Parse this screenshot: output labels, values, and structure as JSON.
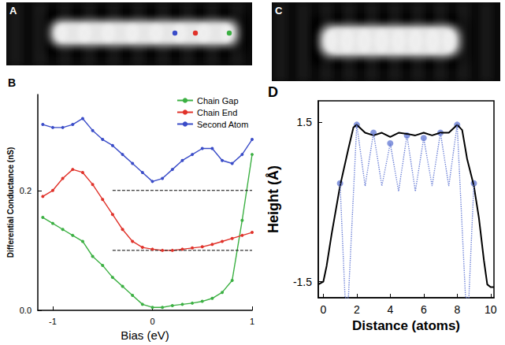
{
  "images": [
    {
      "label": "A",
      "markers": [
        {
          "color": "#3a4cc8"
        },
        {
          "color": "#e0322a"
        },
        {
          "color": "#3cb043"
        }
      ]
    },
    {
      "label": "C"
    }
  ],
  "chart_data": [
    {
      "type": "line",
      "title": "B",
      "x_label": "Bias (eV)",
      "y_label": "Differential Conductance (nS)",
      "x": [
        -1.1,
        -1.0,
        -0.9,
        -0.8,
        -0.7,
        -0.6,
        -0.5,
        -0.4,
        -0.3,
        -0.2,
        -0.1,
        0.0,
        0.1,
        0.2,
        0.3,
        0.4,
        0.5,
        0.6,
        0.7,
        0.8,
        0.9,
        1.0
      ],
      "series": [
        {
          "name": "Chain Gap",
          "color": "#3cb043",
          "marker": "circle",
          "line_style": "solid",
          "values": [
            0.155,
            0.145,
            0.135,
            0.125,
            0.115,
            0.09,
            0.075,
            0.055,
            0.04,
            0.025,
            0.01,
            0.005,
            0.005,
            0.008,
            0.01,
            0.012,
            0.015,
            0.02,
            0.03,
            0.05,
            0.15,
            0.26
          ]
        },
        {
          "name": "Chain End",
          "color": "#e0322a",
          "marker": "circle",
          "line_style": "solid",
          "values": [
            0.19,
            0.2,
            0.22,
            0.235,
            0.23,
            0.21,
            0.185,
            0.16,
            0.135,
            0.115,
            0.105,
            0.102,
            0.1,
            0.1,
            0.102,
            0.104,
            0.106,
            0.11,
            0.115,
            0.12,
            0.125,
            0.13
          ]
        },
        {
          "name": "Second Atom",
          "color": "#3a4cc8",
          "marker": "circle",
          "line_style": "solid",
          "values": [
            0.31,
            0.305,
            0.305,
            0.31,
            0.32,
            0.3,
            0.285,
            0.275,
            0.26,
            0.245,
            0.23,
            0.215,
            0.22,
            0.235,
            0.25,
            0.26,
            0.27,
            0.27,
            0.25,
            0.245,
            0.26,
            0.285
          ]
        }
      ],
      "baselines": [
        {
          "x": [
            -0.4,
            1.0
          ],
          "y": 0.2
        },
        {
          "x": [
            -0.4,
            1.0
          ],
          "y": 0.1
        }
      ],
      "xlim": [
        -1.15,
        1.0
      ],
      "xticks": [
        -1,
        0,
        1
      ],
      "ylim": [
        0,
        0.36
      ],
      "yticks": [
        {
          "value": 0,
          "label": "0.0"
        },
        {
          "value": 0.2,
          "label": "0.2"
        }
      ],
      "grid": false,
      "legend": "upper right"
    },
    {
      "type": "line",
      "title": "D",
      "x_label": "Distance (atoms)",
      "y_label": "Height (Å)",
      "series": [
        {
          "color": "#000000",
          "type": "line",
          "marker": "none",
          "line_style": "solid",
          "x": [
            -0.3,
            0,
            0.2,
            0.5,
            1,
            1.5,
            1.8,
            2,
            2.5,
            3,
            3.5,
            4,
            4.5,
            5,
            5.5,
            6,
            6.5,
            7,
            7.5,
            8,
            8.3,
            8.6,
            9,
            9.3,
            9.6,
            9.8,
            10,
            10.2
          ],
          "values": [
            -1.55,
            -1.5,
            -1.2,
            -0.6,
            0.3,
            1.0,
            1.4,
            1.45,
            1.3,
            1.25,
            1.3,
            1.22,
            1.3,
            1.28,
            1.25,
            1.3,
            1.25,
            1.3,
            1.3,
            1.45,
            1.35,
            0.8,
            0.3,
            -0.3,
            -1.1,
            -1.55,
            -1.6,
            -1.6
          ]
        },
        {
          "color": "#6a7fd6",
          "type": "line",
          "marker": "none",
          "line_style": "dotted",
          "x": [
            1,
            1.3,
            1.5,
            2,
            2.5,
            3,
            3.5,
            4,
            4.5,
            5,
            5.5,
            6,
            6.5,
            7,
            7.5,
            8,
            8.5,
            8.7,
            9
          ],
          "values": [
            0.35,
            -1.8,
            -1.8,
            1.45,
            0.3,
            1.3,
            0.3,
            1.1,
            0.2,
            1.25,
            0.2,
            1.2,
            0.3,
            1.3,
            0.3,
            1.45,
            -1.8,
            -1.8,
            0.35
          ]
        },
        {
          "color": "#6a7fd6",
          "type": "scatter",
          "marker": "circle",
          "x": [
            1,
            2,
            3,
            4,
            5,
            6,
            7,
            8,
            9
          ],
          "values": [
            0.35,
            1.45,
            1.3,
            1.1,
            1.25,
            1.2,
            1.3,
            1.45,
            0.35
          ]
        }
      ],
      "xlim": [
        -0.3,
        10.2
      ],
      "xticks": [
        0,
        2,
        4,
        6,
        8,
        10
      ],
      "ylim": [
        -1.8,
        1.9
      ],
      "yticks": [
        -1.5,
        1.5
      ],
      "grid": false
    }
  ]
}
